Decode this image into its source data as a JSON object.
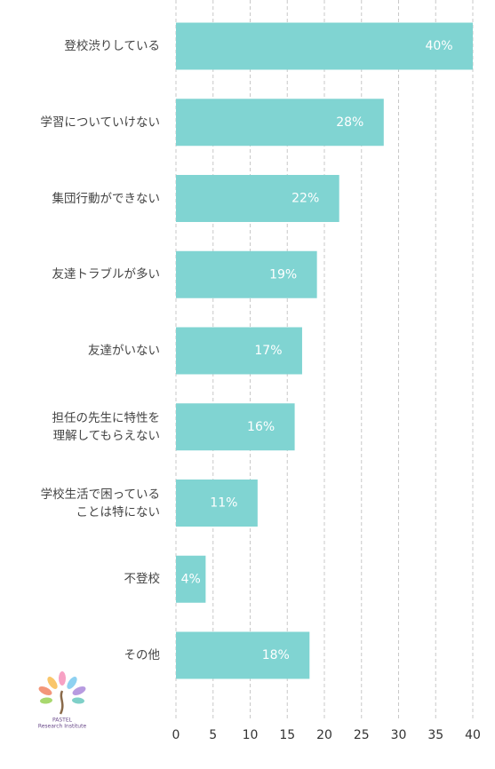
{
  "chart_data": {
    "type": "barh",
    "categories": [
      "登校渋りしている",
      "学習についていけない",
      "集団行動ができない",
      "友達トラブルが多い",
      "友達がいない",
      "担任の先生に特性を\n理解してもらえない",
      "学校生活で困っている\nことは特にない",
      "不登校",
      "その他"
    ],
    "values": [
      40,
      28,
      22,
      19,
      17,
      16,
      11,
      4,
      18
    ],
    "value_labels": [
      "40%",
      "28%",
      "22%",
      "19%",
      "17%",
      "16%",
      "11%",
      "4%",
      "18%"
    ],
    "color": "#80d4d2",
    "xlim": [
      0,
      40
    ],
    "xticks": [
      0,
      5,
      10,
      15,
      20,
      25,
      30,
      35,
      40
    ],
    "grid": true,
    "logo_text": [
      "PASTEL",
      "Research Institute"
    ]
  }
}
